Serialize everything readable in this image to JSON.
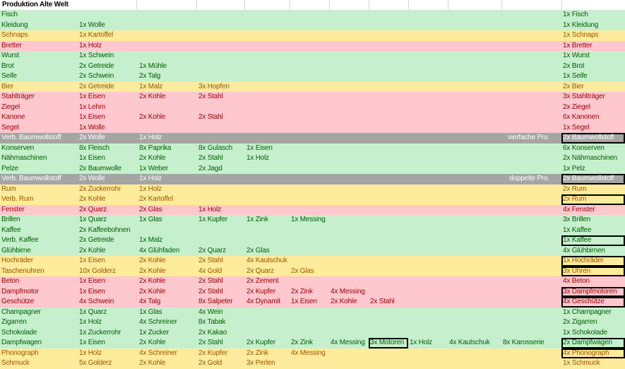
{
  "title": "Produktion Alte Welt",
  "colors": {
    "green_bg": "#c6efce",
    "green_text": "#006100",
    "yellow_bg": "#ffeb9c",
    "yellow_text": "#9c5700",
    "red_bg": "#ffc7ce",
    "red_text": "#9c0006",
    "gray_bg": "#a5a5a5",
    "gray_text": "#ffffff"
  },
  "rows": [
    {
      "color": "green",
      "name": "Fisch",
      "inputs": [],
      "output": "1x Fisch"
    },
    {
      "color": "green",
      "name": "Kleidung",
      "inputs": [
        "1x Wolle"
      ],
      "output": "1x Kleidung"
    },
    {
      "color": "yellow",
      "name": "Schnaps",
      "inputs": [
        "1x Kartoffel"
      ],
      "output": "1x Schnaps"
    },
    {
      "color": "red",
      "name": "Bretter",
      "inputs": [
        "1x Holz"
      ],
      "output": "1x Bretter"
    },
    {
      "color": "green",
      "name": "Wurst",
      "inputs": [
        "1x Schwein"
      ],
      "output": "1x Wurst"
    },
    {
      "color": "green",
      "name": "Brot",
      "inputs": [
        "2x Getreide",
        "1x Mühle"
      ],
      "output": "2x Brot"
    },
    {
      "color": "green",
      "name": "Seife",
      "inputs": [
        "2x Schwein",
        "2x Talg"
      ],
      "output": "1x Seife"
    },
    {
      "color": "yellow",
      "name": "Bier",
      "inputs": [
        "2x Getreide",
        "1x Malz",
        "3x Hopfen"
      ],
      "output": "2x Bier"
    },
    {
      "color": "red",
      "name": "Stahlträger",
      "inputs": [
        "1x Eisen",
        "2x Kohle",
        "2x Stahl"
      ],
      "output": "3x Stahlträger"
    },
    {
      "color": "red",
      "name": "Ziegel",
      "inputs": [
        "1x Lehm"
      ],
      "output": "2x Ziegel"
    },
    {
      "color": "red",
      "name": "Kanone",
      "inputs": [
        "1x Eisen",
        "2x Kohle",
        "2x Stahl"
      ],
      "output": "6x Kanonen"
    },
    {
      "color": "red",
      "name": "Segel",
      "inputs": [
        "1x Wolle"
      ],
      "output": "1x Segel"
    },
    {
      "color": "gray",
      "name": "Verb. Baumwollstoff",
      "inputs": [
        "2x Wolle",
        "1x Holz"
      ],
      "note": "vierfache Pro.",
      "output": "2x Baumwollstoff",
      "boxed": true
    },
    {
      "color": "green",
      "name": "Konserven",
      "inputs": [
        "8x Fleisch",
        "8x Paprika",
        "8x Gulasch",
        "1x Eisen"
      ],
      "output": "6x Konserven"
    },
    {
      "color": "green",
      "name": "Nähmaschinen",
      "inputs": [
        "1x Eisen",
        "2x Kohle",
        "2x Stahl",
        "1x Holz"
      ],
      "output": "2x Nähmaschinen"
    },
    {
      "color": "green",
      "name": "Pelze",
      "inputs": [
        "2x Baumwolle",
        "1x Weber",
        "2x Jagd"
      ],
      "output": "1x Pelz"
    },
    {
      "color": "gray",
      "name": "Verb. Baumwollstoff",
      "inputs": [
        "2x Wolle",
        "1x Holz"
      ],
      "note": "doppelte Pro.",
      "output": "2x Baumwollstoff",
      "boxed": true
    },
    {
      "color": "yellow",
      "name": "Rum",
      "inputs": [
        "2x Zuckerrohr",
        "1x Holz"
      ],
      "output": "2x Rum"
    },
    {
      "color": "yellow",
      "name": "Verb. Rum",
      "inputs": [
        "2x Kohle",
        "2x Kartoffel"
      ],
      "output": "2x Rum",
      "boxed": true
    },
    {
      "color": "red",
      "name": "Fenster",
      "inputs": [
        "2x Quarz",
        "2x Glas",
        "1x Holz"
      ],
      "output": "4x Fenster"
    },
    {
      "color": "green",
      "name": "Brillen",
      "inputs": [
        "1x Quarz",
        "1x Glas",
        "1x Kupfer",
        "1x Zink",
        "1x Messing"
      ],
      "output": "3x Brillen"
    },
    {
      "color": "green",
      "name": "Kaffee",
      "inputs": [
        "2x Kaffeebohnen"
      ],
      "output": "1x Kaffee"
    },
    {
      "color": "green",
      "name": "Verb. Kaffee",
      "inputs": [
        "2x Getreide",
        "1x Malz"
      ],
      "output": "1x Kaffee",
      "boxed": true
    },
    {
      "color": "green",
      "name": "Glühbirne",
      "inputs": [
        "2x Kohle",
        "4x Glühfaden",
        "2x Quarz",
        "2x Glas"
      ],
      "output": "4x Glühbirnen"
    },
    {
      "color": "yellow",
      "name": "Hochräder",
      "inputs": [
        "1x Eisen",
        "2x Kohle",
        "2x Stahl",
        "4x Kautschuk"
      ],
      "output": "1x Hochräder",
      "boxed": true
    },
    {
      "color": "yellow",
      "name": "Taschenuhren",
      "inputs": [
        "10x Golderz",
        "2x Kohle",
        "4x Gold",
        "2x Quarz",
        "2x Glas"
      ],
      "output": "3x Uhren",
      "boxed": true
    },
    {
      "color": "red",
      "name": "Beton",
      "inputs": [
        "1x Eisen",
        "2x Kohle",
        "2x Stahl",
        "2x Zement"
      ],
      "output": "4x Beton"
    },
    {
      "color": "red",
      "name": "Dampfmotor",
      "inputs": [
        "1x Eisen",
        "2x Kohle",
        "2x Stahl",
        "2x Kupfer",
        "2x Zink",
        "4x Messing"
      ],
      "output": "3x Dampfmotoren",
      "boxed": true
    },
    {
      "color": "red",
      "name": "Geschütze",
      "inputs": [
        "4x Schwein",
        "4x Talg",
        "8x Salpeter",
        "4x Dynamit",
        "1x Eisen",
        "2x Kohle",
        "2x Stahl"
      ],
      "output": "4x Geschütze",
      "boxed": true
    },
    {
      "color": "green",
      "name": "Champagner",
      "inputs": [
        "1x Quarz",
        "1x Glas",
        "4x Wein"
      ],
      "output": "1x Champagner"
    },
    {
      "color": "green",
      "name": "Zigarren",
      "inputs": [
        "1x Holz",
        "4x Schreiner",
        "8x Tabak"
      ],
      "output": "2x Zigarren"
    },
    {
      "color": "green",
      "name": "Schokolade",
      "inputs": [
        "1x Zuckerrohr",
        "1x Zucker",
        "2x Kakao"
      ],
      "output": "1x Schokolade"
    },
    {
      "color": "green",
      "name": "Dampfwagen",
      "inputs": [
        "1x Eisen",
        "2x Kohle",
        "2x Stahl",
        "2x Kupfer",
        "2x Zink",
        "4x Messing",
        "3x Motoren",
        "1x Holz",
        "4x Kautschuk",
        "8x Karosserie"
      ],
      "boxed_input": 6,
      "output": "2x Dampfwagen",
      "boxed": true
    },
    {
      "color": "yellow",
      "name": "Phonograph",
      "inputs": [
        "1x Holz",
        "4x Schreiner",
        "2x Kupfer",
        "2x Zink",
        "4x Messing"
      ],
      "output": "4x Phonograph",
      "boxed": true
    },
    {
      "color": "yellow",
      "name": "Schmuck",
      "inputs": [
        "5x Golderz",
        "2x Kohle",
        "2x Gold",
        "3x Perlen"
      ],
      "output": "1x Schmuck"
    }
  ]
}
